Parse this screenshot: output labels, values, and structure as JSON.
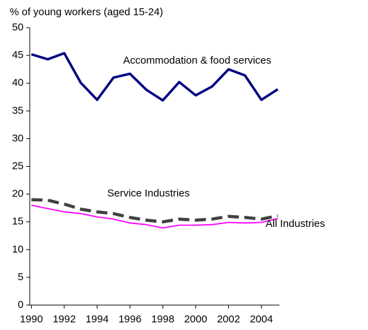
{
  "chart_data": {
    "type": "line",
    "y_label": "% of young workers (aged 15-24)",
    "x": [
      1990,
      1991,
      1992,
      1993,
      1994,
      1995,
      1996,
      1997,
      1998,
      1999,
      2000,
      2001,
      2002,
      2003,
      2004,
      2005
    ],
    "series": [
      {
        "name": "Accommodation & food services",
        "color": "#000080",
        "values": [
          45.2,
          44.3,
          45.4,
          40.1,
          37.0,
          41.0,
          41.7,
          38.8,
          36.9,
          40.2,
          37.8,
          39.4,
          42.5,
          41.4,
          37.0,
          38.9
        ]
      },
      {
        "name": "Service Industries",
        "color": "#404040",
        "dashed": true,
        "values": [
          19.0,
          18.9,
          18.2,
          17.3,
          16.8,
          16.5,
          15.8,
          15.3,
          15.0,
          15.5,
          15.3,
          15.5,
          16.0,
          15.8,
          15.5,
          16.1
        ]
      },
      {
        "name": "All Industries",
        "color": "#ff00ff",
        "values": [
          18.0,
          17.4,
          16.8,
          16.5,
          15.9,
          15.5,
          14.8,
          14.5,
          13.9,
          14.4,
          14.4,
          14.5,
          14.9,
          14.8,
          14.9,
          15.6
        ]
      }
    ],
    "xlim": [
      1989.9,
      2005.1
    ],
    "xticks": [
      1990,
      1992,
      1994,
      1996,
      1998,
      2000,
      2002,
      2004
    ],
    "ylim": [
      0,
      50
    ],
    "yticks": [
      0,
      5,
      10,
      15,
      20,
      25,
      30,
      35,
      40,
      45,
      50
    ]
  }
}
